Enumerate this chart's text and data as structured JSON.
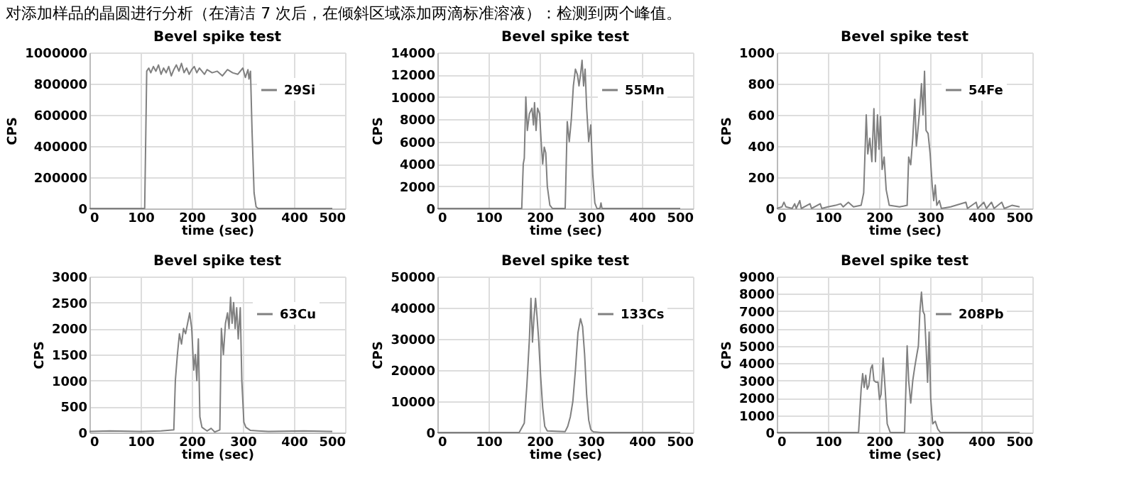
{
  "chart_data": [
    {
      "type": "line",
      "title": "Bevel spike test",
      "annotations": [
        "对添加样品的晶圆进行分析（在清洁 7 次后，在倾斜区域添加两滴标准溶液）：检测到两个峰值。"
      ],
      "xlabel": "time (sec)",
      "ylabel": "CPS",
      "xlim": [
        0,
        500
      ],
      "xticks": [
        0,
        100,
        200,
        300,
        400,
        500
      ],
      "ylim": [
        0,
        1000000
      ],
      "yticks": [
        0,
        200000,
        400000,
        600000,
        800000,
        1000000
      ],
      "grid": true,
      "legend": "top right",
      "line_style": "solid",
      "series": [
        {
          "name": "29Si",
          "color": "#808080",
          "x": [
            0,
            100,
            108,
            112,
            116,
            120,
            125,
            130,
            135,
            140,
            145,
            150,
            155,
            160,
            165,
            170,
            175,
            180,
            185,
            190,
            195,
            200,
            205,
            210,
            215,
            220,
            225,
            230,
            240,
            250,
            260,
            270,
            280,
            290,
            300,
            305,
            310,
            312,
            315,
            318,
            322,
            326,
            330,
            350,
            400,
            450,
            475
          ],
          "values": [
            0,
            0,
            0,
            880000,
            900000,
            870000,
            910000,
            880000,
            920000,
            860000,
            900000,
            870000,
            910000,
            850000,
            890000,
            920000,
            880000,
            930000,
            870000,
            900000,
            860000,
            890000,
            910000,
            870000,
            900000,
            880000,
            860000,
            890000,
            870000,
            880000,
            850000,
            890000,
            870000,
            860000,
            900000,
            840000,
            890000,
            830000,
            880000,
            500000,
            100000,
            10000,
            0,
            0,
            0,
            0,
            0
          ]
        }
      ]
    },
    {
      "type": "line",
      "title": "Bevel spike test",
      "xlabel": "time (sec)",
      "ylabel": "CPS",
      "xlim": [
        0,
        500
      ],
      "xticks": [
        0,
        100,
        200,
        300,
        400,
        500
      ],
      "ylim": [
        0,
        14000
      ],
      "yticks": [
        0,
        2000,
        4000,
        6000,
        8000,
        10000,
        12000,
        14000
      ],
      "grid": true,
      "legend": "top right",
      "line_style": "solid",
      "series": [
        {
          "name": "55Mn",
          "color": "#808080",
          "x": [
            0,
            165,
            168,
            170,
            173,
            176,
            180,
            185,
            188,
            190,
            193,
            196,
            200,
            203,
            206,
            209,
            212,
            215,
            220,
            225,
            250,
            254,
            258,
            262,
            266,
            270,
            274,
            277,
            280,
            283,
            286,
            289,
            292,
            296,
            300,
            304,
            308,
            312,
            318,
            320,
            322,
            400,
            475
          ],
          "values": [
            0,
            0,
            4000,
            4500,
            10000,
            7000,
            8500,
            9000,
            7500,
            9500,
            7000,
            9000,
            8500,
            6000,
            4000,
            5500,
            5000,
            2000,
            300,
            0,
            0,
            7800,
            6000,
            8000,
            11000,
            12500,
            12000,
            11000,
            12000,
            13300,
            11000,
            12500,
            9000,
            6000,
            7500,
            3000,
            500,
            0,
            0,
            500,
            0,
            0,
            0
          ]
        }
      ]
    },
    {
      "type": "line",
      "title": "Bevel spike test",
      "xlabel": "time (sec)",
      "ylabel": "CPS",
      "xlim": [
        0,
        500
      ],
      "xticks": [
        0,
        100,
        200,
        300,
        400,
        500
      ],
      "ylim": [
        0,
        1000
      ],
      "yticks": [
        0,
        200,
        400,
        600,
        800,
        1000
      ],
      "grid": true,
      "legend": "top right",
      "line_style": "solid",
      "series": [
        {
          "name": "54Fe",
          "color": "#808080",
          "x": [
            0,
            10,
            14,
            18,
            30,
            35,
            38,
            45,
            48,
            65,
            68,
            85,
            88,
            100,
            115,
            125,
            130,
            140,
            150,
            165,
            170,
            175,
            178,
            182,
            186,
            190,
            193,
            197,
            200,
            203,
            206,
            210,
            214,
            220,
            240,
            255,
            258,
            262,
            266,
            270,
            273,
            276,
            280,
            283,
            286,
            289,
            292,
            296,
            300,
            304,
            307,
            310,
            313,
            318,
            322,
            340,
            370,
            373,
            390,
            393,
            405,
            410,
            420,
            425,
            440,
            445,
            460,
            475
          ],
          "values": [
            0,
            10,
            40,
            10,
            0,
            30,
            0,
            50,
            0,
            30,
            0,
            30,
            0,
            10,
            20,
            30,
            10,
            40,
            10,
            20,
            100,
            600,
            350,
            450,
            300,
            640,
            300,
            600,
            380,
            590,
            250,
            330,
            120,
            20,
            10,
            20,
            330,
            280,
            450,
            700,
            400,
            500,
            650,
            800,
            600,
            880,
            500,
            480,
            350,
            150,
            50,
            150,
            20,
            50,
            0,
            10,
            40,
            0,
            40,
            0,
            40,
            0,
            40,
            0,
            40,
            0,
            20,
            10
          ]
        }
      ]
    },
    {
      "type": "line",
      "title": "Bevel spike test",
      "xlabel": "time (sec)",
      "ylabel": "CPS",
      "xlim": [
        0,
        500
      ],
      "xticks": [
        0,
        100,
        200,
        300,
        400,
        500
      ],
      "ylim": [
        0,
        3000
      ],
      "yticks": [
        0,
        500,
        1000,
        1500,
        2000,
        2500,
        3000
      ],
      "grid": true,
      "legend": "top right",
      "line_style": "solid",
      "series": [
        {
          "name": "63Cu",
          "color": "#808080",
          "x": [
            0,
            40,
            100,
            140,
            165,
            168,
            172,
            176,
            180,
            184,
            188,
            192,
            196,
            200,
            204,
            207,
            210,
            213,
            216,
            220,
            230,
            238,
            245,
            255,
            258,
            262,
            266,
            270,
            273,
            276,
            279,
            282,
            285,
            288,
            291,
            295,
            298,
            302,
            306,
            315,
            330,
            350,
            420,
            475
          ],
          "values": [
            20,
            30,
            20,
            30,
            50,
            1000,
            1500,
            1900,
            1700,
            2000,
            1900,
            2100,
            2300,
            2000,
            1200,
            1500,
            1000,
            1800,
            300,
            100,
            30,
            80,
            10,
            50,
            2000,
            1500,
            2100,
            2300,
            2000,
            2600,
            2100,
            2500,
            2000,
            2400,
            1800,
            2400,
            1000,
            200,
            100,
            40,
            30,
            20,
            30,
            20
          ]
        }
      ]
    },
    {
      "type": "line",
      "title": "Bevel spike test",
      "xlabel": "time (sec)",
      "ylabel": "CPS",
      "xlim": [
        0,
        500
      ],
      "xticks": [
        0,
        100,
        200,
        300,
        400,
        500
      ],
      "ylim": [
        0,
        50000
      ],
      "yticks": [
        0,
        10000,
        20000,
        30000,
        40000,
        50000
      ],
      "grid": true,
      "legend": "top right",
      "line_style": "solid",
      "series": [
        {
          "name": "133Cs",
          "color": "#808080",
          "x": [
            0,
            160,
            170,
            175,
            180,
            183,
            186,
            189,
            192,
            195,
            198,
            202,
            206,
            210,
            215,
            250,
            255,
            260,
            265,
            270,
            275,
            280,
            284,
            288,
            292,
            296,
            300,
            305,
            320,
            475
          ],
          "values": [
            0,
            0,
            3000,
            15000,
            30000,
            43000,
            29000,
            37000,
            43000,
            37000,
            30000,
            18000,
            8000,
            2000,
            500,
            300,
            2000,
            5000,
            10000,
            20000,
            32000,
            36500,
            34000,
            25000,
            12000,
            4000,
            1000,
            200,
            0,
            0
          ]
        }
      ]
    },
    {
      "type": "line",
      "title": "Bevel spike test",
      "xlabel": "time (sec)",
      "ylabel": "CPS",
      "xlim": [
        0,
        500
      ],
      "xticks": [
        0,
        100,
        200,
        300,
        400,
        500
      ],
      "ylim": [
        0,
        9000
      ],
      "yticks": [
        0,
        1000,
        2000,
        3000,
        4000,
        5000,
        6000,
        7000,
        8000,
        9000
      ],
      "grid": true,
      "legend": "top right",
      "line_style": "solid",
      "series": [
        {
          "name": "208Pb",
          "color": "#808080",
          "x": [
            0,
            160,
            165,
            168,
            171,
            174,
            177,
            180,
            184,
            187,
            190,
            194,
            198,
            201,
            204,
            208,
            212,
            216,
            222,
            250,
            255,
            258,
            262,
            266,
            270,
            274,
            277,
            280,
            283,
            286,
            289,
            292,
            295,
            298,
            301,
            305,
            310,
            315,
            320,
            400,
            475
          ],
          "values": [
            0,
            0,
            2500,
            3400,
            2600,
            3300,
            2500,
            2700,
            3700,
            3900,
            3000,
            2900,
            2900,
            1900,
            2200,
            4300,
            2500,
            500,
            0,
            0,
            5000,
            3000,
            1700,
            3000,
            3800,
            4500,
            5000,
            7000,
            8100,
            7000,
            6800,
            5000,
            2900,
            5800,
            2000,
            500,
            650,
            200,
            0,
            0,
            0
          ]
        }
      ]
    }
  ]
}
